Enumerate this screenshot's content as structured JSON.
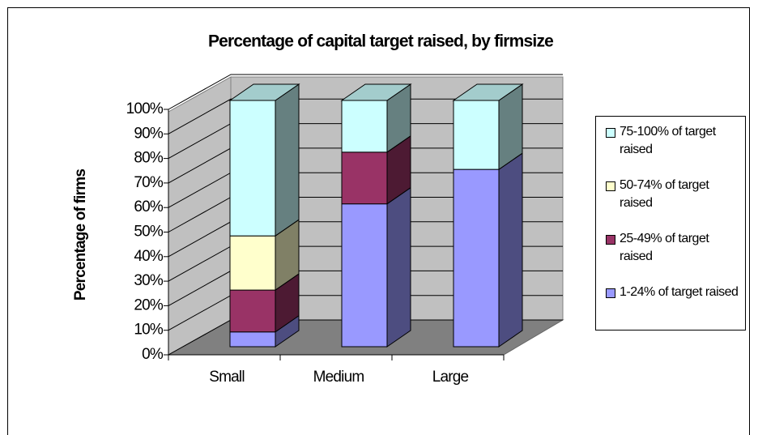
{
  "chart_data": {
    "type": "bar3d_stacked",
    "title": "Percentage of capital target raised, by firmsize",
    "y_label": "Percentage of firms",
    "categories": [
      "Small",
      "Medium",
      "Large"
    ],
    "series": [
      {
        "name": "1-24% of target raised",
        "color": "#9999ff",
        "values": [
          6,
          58,
          72
        ]
      },
      {
        "name": "25-49% of target raised",
        "color": "#993366",
        "values": [
          17,
          21,
          0
        ]
      },
      {
        "name": "50-74% of target raised",
        "color": "#ffffcc",
        "values": [
          22,
          0,
          0
        ]
      },
      {
        "name": "75-100% of target raised",
        "color": "#ccffff",
        "values": [
          55,
          21,
          28
        ]
      }
    ],
    "ylim": [
      0,
      100
    ],
    "yticks": [
      {
        "value": 0,
        "label": "0%"
      },
      {
        "value": 10,
        "label": "10%"
      },
      {
        "value": 20,
        "label": "20%"
      },
      {
        "value": 30,
        "label": "30%"
      },
      {
        "value": 40,
        "label": "40%"
      },
      {
        "value": 50,
        "label": "50%"
      },
      {
        "value": 60,
        "label": "60%"
      },
      {
        "value": 70,
        "label": "70%"
      },
      {
        "value": 80,
        "label": "80%"
      },
      {
        "value": 90,
        "label": "90%"
      },
      {
        "value": 100,
        "label": "100%"
      }
    ],
    "grid": true,
    "legend": "right"
  }
}
